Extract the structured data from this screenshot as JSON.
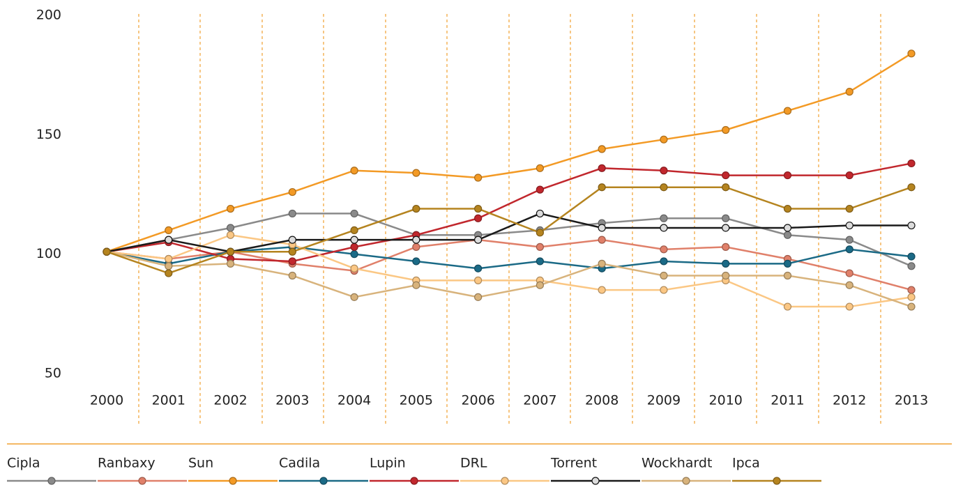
{
  "chart_data": {
    "type": "line",
    "categories": [
      "2000",
      "2001",
      "2002",
      "2003",
      "2004",
      "2005",
      "2006",
      "2007",
      "2008",
      "2009",
      "2010",
      "2011",
      "2012",
      "2013"
    ],
    "ylim": [
      50,
      200
    ],
    "yticks": [
      50,
      100,
      150,
      200
    ],
    "series": [
      {
        "name": "Cipla",
        "color": "#8a8a8a",
        "values": [
          101,
          106,
          111,
          117,
          117,
          108,
          108,
          110,
          113,
          115,
          115,
          108,
          106,
          95
        ]
      },
      {
        "name": "Ranbaxy",
        "color": "#e0806a",
        "values": [
          101,
          98,
          101,
          96,
          93,
          103,
          106,
          103,
          106,
          102,
          103,
          98,
          92,
          85
        ]
      },
      {
        "name": "Sun",
        "color": "#f39a25",
        "values": [
          101,
          110,
          119,
          126,
          135,
          134,
          132,
          136,
          144,
          148,
          152,
          160,
          168,
          184
        ]
      },
      {
        "name": "Cadila",
        "color": "#1b6a86",
        "values": [
          101,
          96,
          101,
          103,
          100,
          97,
          94,
          97,
          94,
          97,
          96,
          96,
          102,
          99
        ]
      },
      {
        "name": "Lupin",
        "color": "#c1272d",
        "values": [
          101,
          105,
          98,
          97,
          103,
          108,
          115,
          127,
          136,
          135,
          133,
          133,
          133,
          138
        ]
      },
      {
        "name": "DRL",
        "color": "#fbc784",
        "values": [
          101,
          98,
          108,
          104,
          94,
          89,
          89,
          89,
          85,
          85,
          89,
          78,
          78,
          82
        ]
      },
      {
        "name": "Torrent",
        "color": "#1a1a1a",
        "values": [
          101,
          106,
          101,
          106,
          106,
          106,
          106,
          117,
          111,
          111,
          111,
          111,
          112,
          112
        ]
      },
      {
        "name": "Wockhardt",
        "color": "#d8b37c",
        "values": [
          101,
          95,
          96,
          91,
          82,
          87,
          82,
          87,
          96,
          91,
          91,
          91,
          87,
          78
        ]
      },
      {
        "name": "Ipca",
        "color": "#b5841f",
        "values": [
          101,
          92,
          101,
          101,
          110,
          119,
          119,
          109,
          128,
          128,
          128,
          119,
          119,
          128
        ]
      }
    ]
  }
}
